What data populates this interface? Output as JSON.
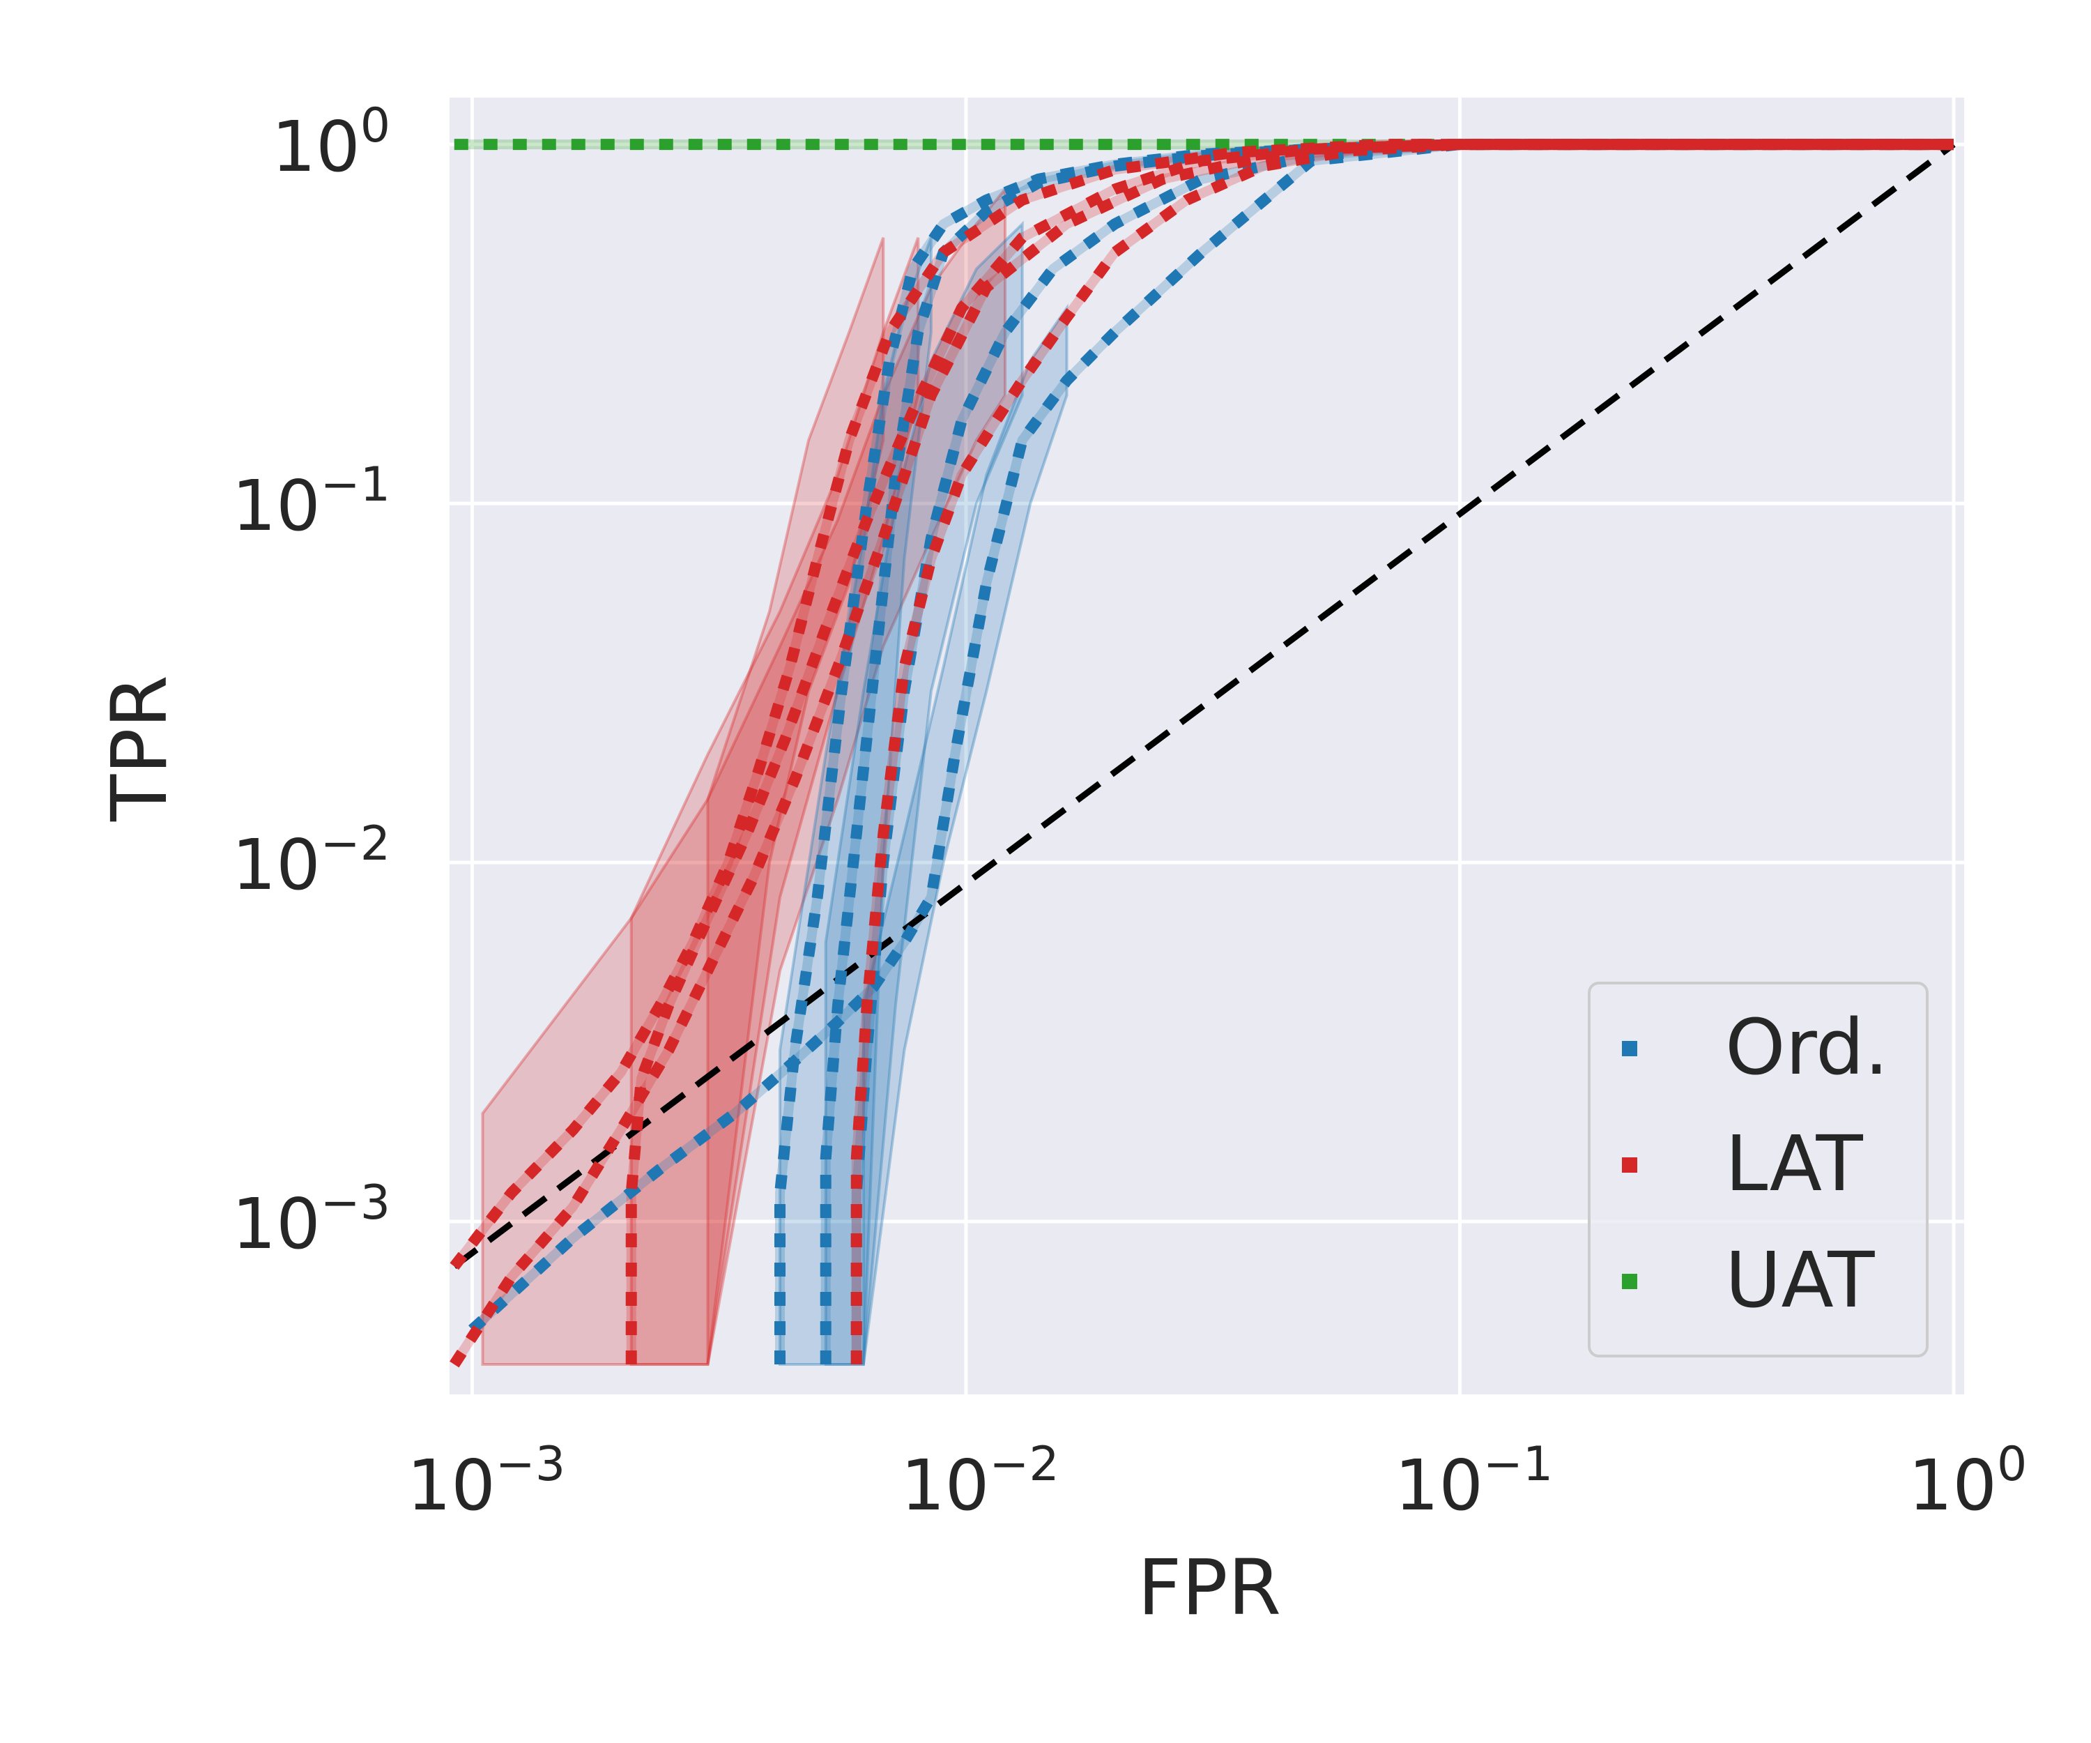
{
  "chart_data": {
    "type": "line",
    "xlabel": "FPR",
    "ylabel": "TPR",
    "xscale": "log",
    "yscale": "log",
    "xlim": [
      0.0009,
      1.05
    ],
    "ylim": [
      0.00033,
      1.35
    ],
    "grid": true,
    "legend_position": "bottom-right",
    "x_ticks": [
      {
        "value": 0.001,
        "base": "10",
        "exp": "−3"
      },
      {
        "value": 0.01,
        "base": "10",
        "exp": "−2"
      },
      {
        "value": 0.1,
        "base": "10",
        "exp": "−1"
      },
      {
        "value": 1,
        "base": "10",
        "exp": "0"
      }
    ],
    "y_ticks": [
      {
        "value": 0.001,
        "base": "10",
        "exp": "−3"
      },
      {
        "value": 0.01,
        "base": "10",
        "exp": "−2"
      },
      {
        "value": 0.1,
        "base": "10",
        "exp": "−1"
      },
      {
        "value": 1,
        "base": "10",
        "exp": "0"
      }
    ],
    "legend": [
      {
        "label": "Ord.",
        "color": "#1f77b4"
      },
      {
        "label": "LAT",
        "color": "#d62728"
      },
      {
        "label": "UAT",
        "color": "#2ca02c"
      }
    ],
    "colors": {
      "Ord.": "#1f77b4",
      "LAT": "#d62728",
      "UAT": "#2ca02c",
      "diagonal": "#000000",
      "plot_bg": "#eaeaf2",
      "grid": "#ffffff"
    },
    "diagonal": {
      "x": [
        0.00092,
        1
      ],
      "y": [
        0.00075,
        1
      ]
    },
    "bands": [
      {
        "series": "LAT",
        "x": [
          0.00105,
          0.0021,
          0.003,
          0.004,
          0.0048,
          0.0058,
          0.0068
        ],
        "lower": [
          0.0004,
          0.0004,
          0.0004,
          0.01,
          0.03,
          0.06,
          0.15
        ],
        "upper": [
          0.002,
          0.007,
          0.015,
          0.05,
          0.15,
          0.3,
          0.55
        ]
      },
      {
        "series": "LAT",
        "x": [
          0.0021,
          0.003,
          0.0042,
          0.0055,
          0.0068,
          0.008
        ],
        "lower": [
          0.0004,
          0.0004,
          0.008,
          0.03,
          0.08,
          0.2
        ],
        "upper": [
          0.007,
          0.02,
          0.05,
          0.12,
          0.3,
          0.55
        ]
      },
      {
        "series": "LAT",
        "x": [
          0.003,
          0.0042,
          0.0055,
          0.0068,
          0.0085,
          0.0105,
          0.012
        ],
        "lower": [
          0.0004,
          0.005,
          0.015,
          0.04,
          0.08,
          0.15,
          0.2
        ],
        "upper": [
          0.015,
          0.04,
          0.09,
          0.2,
          0.4,
          0.6,
          0.75
        ]
      },
      {
        "series": "Ord.",
        "x": [
          0.0042,
          0.0052,
          0.0062,
          0.0068,
          0.0075,
          0.0085
        ],
        "lower": [
          0.0004,
          0.0004,
          0.0004,
          0.01,
          0.07,
          0.3
        ],
        "upper": [
          0.003,
          0.02,
          0.08,
          0.2,
          0.35,
          0.55
        ]
      },
      {
        "series": "Ord.",
        "x": [
          0.0052,
          0.0062,
          0.0072,
          0.0085,
          0.0105,
          0.013
        ],
        "lower": [
          0.0004,
          0.0004,
          0.004,
          0.03,
          0.1,
          0.2
        ],
        "upper": [
          0.006,
          0.03,
          0.1,
          0.25,
          0.45,
          0.6
        ]
      },
      {
        "series": "Ord.",
        "x": [
          0.0062,
          0.0075,
          0.009,
          0.011,
          0.0135,
          0.016
        ],
        "lower": [
          0.0004,
          0.003,
          0.01,
          0.03,
          0.1,
          0.2
        ],
        "upper": [
          0.004,
          0.012,
          0.035,
          0.12,
          0.25,
          0.35
        ]
      }
    ],
    "series": [
      {
        "series": "UAT",
        "color": "#2ca02c",
        "x": [
          0.00092,
          0.002,
          0.005,
          0.01,
          0.03,
          0.1,
          0.3,
          1
        ],
        "y": [
          1,
          1,
          1,
          1,
          1,
          1,
          1,
          1
        ]
      },
      {
        "series": "Ord.",
        "color": "#1f77b4",
        "x": [
          0.0042,
          0.0042,
          0.0045,
          0.005,
          0.0056,
          0.0063,
          0.007,
          0.0078,
          0.009,
          0.011,
          0.014,
          0.02,
          0.03,
          0.05,
          0.1,
          0.3,
          1
        ],
        "y": [
          0.0004,
          0.0012,
          0.003,
          0.008,
          0.03,
          0.1,
          0.25,
          0.45,
          0.6,
          0.7,
          0.8,
          0.88,
          0.94,
          0.97,
          1,
          1,
          1
        ]
      },
      {
        "series": "Ord.",
        "color": "#1f77b4",
        "x": [
          0.0052,
          0.0052,
          0.0055,
          0.006,
          0.0066,
          0.0072,
          0.008,
          0.009,
          0.011,
          0.014,
          0.02,
          0.03,
          0.05,
          0.1,
          0.3,
          1
        ],
        "y": [
          0.0004,
          0.0015,
          0.004,
          0.012,
          0.04,
          0.12,
          0.3,
          0.5,
          0.65,
          0.78,
          0.87,
          0.93,
          0.97,
          1,
          1,
          1
        ]
      },
      {
        "series": "Ord.",
        "color": "#1f77b4",
        "x": [
          0.006,
          0.006,
          0.0063,
          0.0068,
          0.0075,
          0.0085,
          0.0098,
          0.012,
          0.015,
          0.02,
          0.03,
          0.05,
          0.1,
          0.3,
          1
        ],
        "y": [
          0.0004,
          0.0012,
          0.003,
          0.01,
          0.03,
          0.08,
          0.17,
          0.3,
          0.45,
          0.6,
          0.8,
          0.93,
          1,
          1,
          1
        ]
      },
      {
        "series": "Ord.",
        "color": "#1f77b4",
        "x": [
          0.001,
          0.0016,
          0.0024,
          0.0034,
          0.0045,
          0.0055,
          0.0065,
          0.0075,
          0.0085,
          0.0095,
          0.011,
          0.013,
          0.016,
          0.02,
          0.03,
          0.05,
          0.1,
          0.3,
          1
        ],
        "y": [
          0.0005,
          0.0009,
          0.0014,
          0.002,
          0.0028,
          0.0036,
          0.0045,
          0.006,
          0.008,
          0.02,
          0.06,
          0.15,
          0.22,
          0.3,
          0.5,
          0.9,
          1,
          1,
          1
        ]
      },
      {
        "series": "LAT",
        "color": "#d62728",
        "x": [
          0.00092,
          0.0012,
          0.0016,
          0.002,
          0.0024,
          0.0028,
          0.0033,
          0.0038,
          0.0044,
          0.005,
          0.0058,
          0.007,
          0.009,
          0.013,
          0.02,
          0.035,
          0.07,
          0.2,
          1
        ],
        "y": [
          0.00075,
          0.0012,
          0.0018,
          0.0026,
          0.004,
          0.006,
          0.01,
          0.018,
          0.035,
          0.07,
          0.15,
          0.3,
          0.5,
          0.7,
          0.85,
          0.95,
          1,
          1,
          1
        ]
      },
      {
        "series": "LAT",
        "color": "#d62728",
        "x": [
          0.00092,
          0.0012,
          0.0016,
          0.002,
          0.0025,
          0.003,
          0.0037,
          0.0045,
          0.0055,
          0.0068,
          0.0085,
          0.011,
          0.016,
          0.025,
          0.04,
          0.08,
          0.2,
          1
        ],
        "y": [
          0.0004,
          0.0007,
          0.0011,
          0.0018,
          0.003,
          0.005,
          0.009,
          0.017,
          0.035,
          0.08,
          0.2,
          0.4,
          0.6,
          0.8,
          0.92,
          1,
          1,
          1
        ]
      },
      {
        "series": "LAT",
        "color": "#d62728",
        "x": [
          0.0021,
          0.0021,
          0.0022,
          0.0025,
          0.003,
          0.0036,
          0.0043,
          0.0052,
          0.0063,
          0.0078,
          0.0098,
          0.013,
          0.02,
          0.03,
          0.05,
          0.1,
          0.3,
          1
        ],
        "y": [
          0.0004,
          0.0012,
          0.0025,
          0.004,
          0.007,
          0.012,
          0.022,
          0.045,
          0.09,
          0.18,
          0.35,
          0.55,
          0.75,
          0.9,
          0.97,
          1,
          1,
          1
        ]
      },
      {
        "series": "LAT",
        "color": "#d62728",
        "x": [
          0.006,
          0.006,
          0.0063,
          0.0068,
          0.0075,
          0.0085,
          0.0098,
          0.0115,
          0.013,
          0.016,
          0.02,
          0.028,
          0.04,
          0.06,
          0.1,
          0.3,
          1
        ],
        "y": [
          0.0004,
          0.0015,
          0.004,
          0.012,
          0.035,
          0.07,
          0.12,
          0.17,
          0.22,
          0.33,
          0.5,
          0.7,
          0.87,
          0.96,
          1,
          1,
          1
        ]
      }
    ]
  }
}
